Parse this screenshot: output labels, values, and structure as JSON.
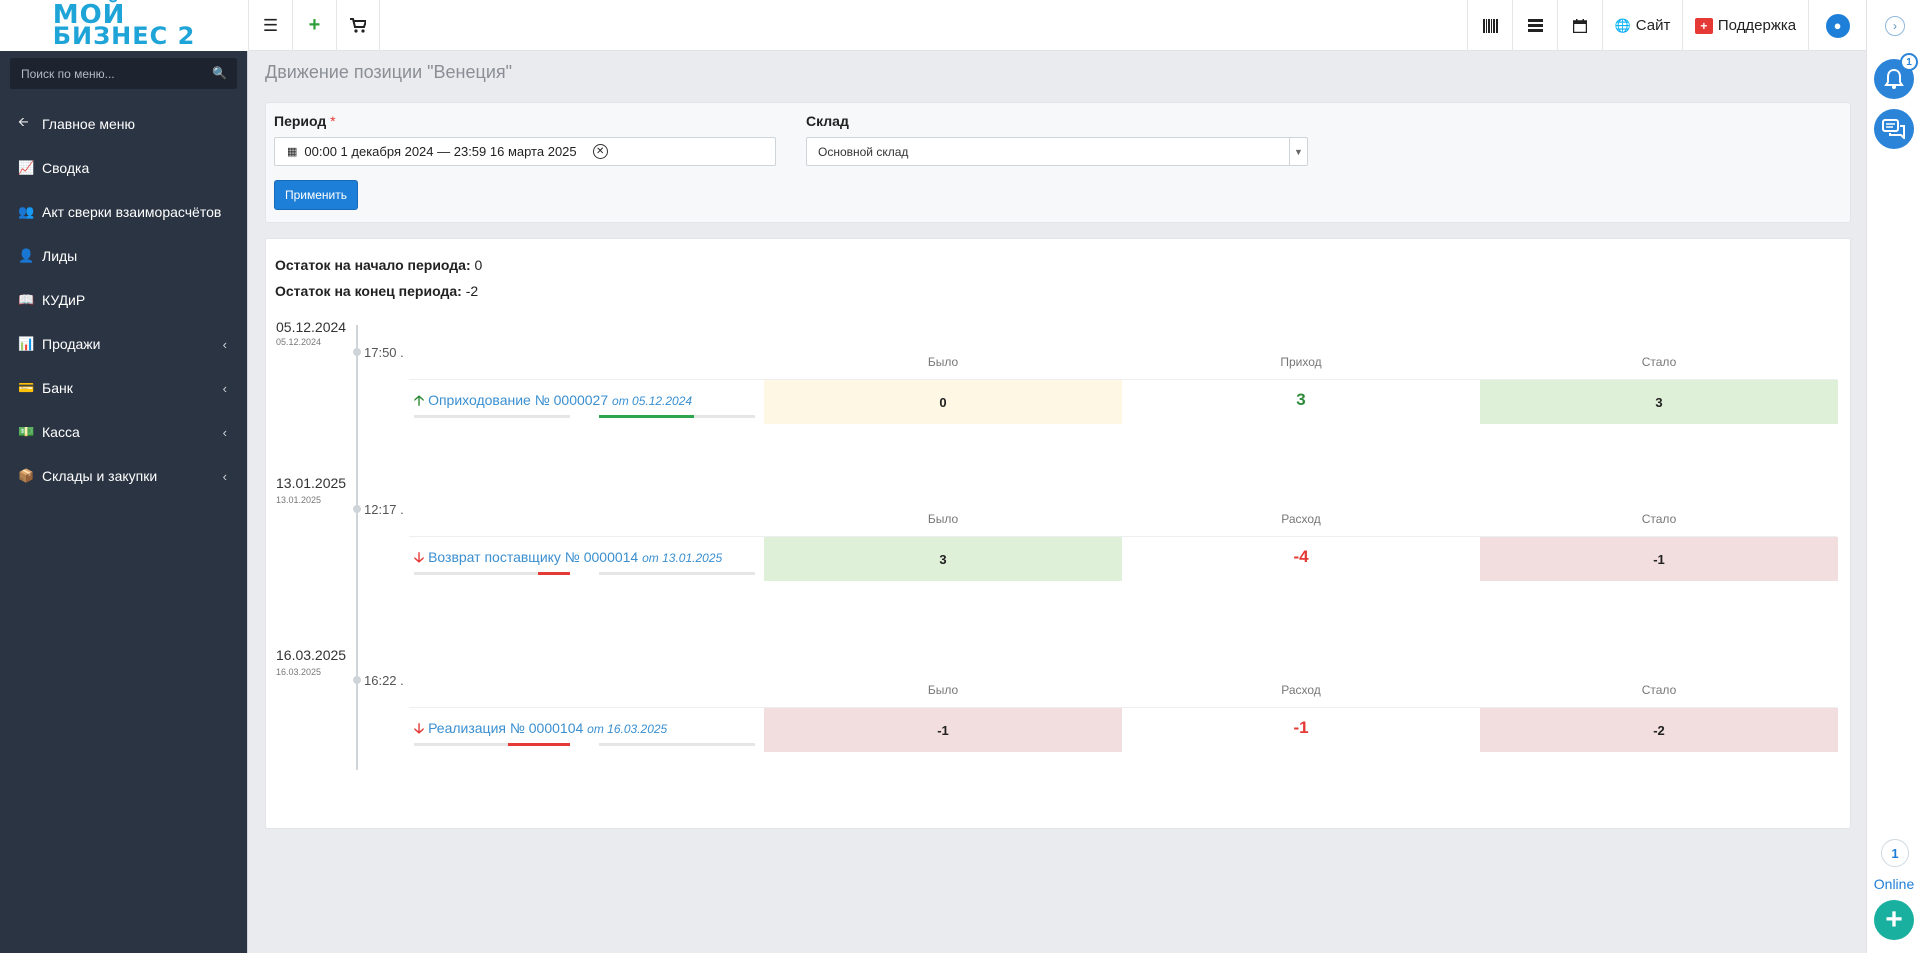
{
  "header": {
    "logo_line1": "МОЙ",
    "logo_line2": "БИЗНЕС 2",
    "site_label": "Сайт",
    "support_label": "Поддержка"
  },
  "rail": {
    "notifications_badge": "1",
    "online_count": "1",
    "online_label": "Online"
  },
  "sidebar": {
    "search_placeholder": "Поиск по меню...",
    "items": [
      {
        "label": "Главное меню",
        "icon": "arrow-left-icon"
      },
      {
        "label": "Сводка",
        "icon": "line-chart-icon"
      },
      {
        "label": "Акт сверки взаиморасчётов",
        "icon": "users-icon"
      },
      {
        "label": "Лиды",
        "icon": "contact-card-icon"
      },
      {
        "label": "КУДиР",
        "icon": "book-icon"
      },
      {
        "label": "Продажи",
        "icon": "bar-chart-icon",
        "has_submenu": true
      },
      {
        "label": "Банк",
        "icon": "credit-card-icon",
        "has_submenu": true
      },
      {
        "label": "Касса",
        "icon": "money-icon",
        "has_submenu": true
      },
      {
        "label": "Склады и закупки",
        "icon": "cube-icon",
        "has_submenu": true
      }
    ]
  },
  "page": {
    "title": "Движение позиции \"Венеция\""
  },
  "filters": {
    "period_label": "Период",
    "required_mark": "*",
    "period_value": "00:00 1 декабря 2024 — 23:59 16 марта 2025",
    "warehouse_label": "Склад",
    "warehouse_value": "Основной склад",
    "apply_label": "Применить"
  },
  "balances": {
    "start_label": "Остаток на начало периода:",
    "start_value": "0",
    "end_label": "Остаток на конец периода:",
    "end_value": "-2"
  },
  "columns": {
    "was": "Было",
    "income": "Приход",
    "expense": "Расход",
    "became": "Стало"
  },
  "movements": [
    {
      "date": "05.12.2024",
      "date_small": "05.12.2024",
      "time": "17:50",
      "direction": "in",
      "doc_title": "Оприходование № 0000027",
      "doc_date": "от 05.12.2024",
      "delta_header": "Приход",
      "was": "0",
      "delta": "3",
      "became": "3"
    },
    {
      "date": "13.01.2025",
      "date_small": "13.01.2025",
      "time": "12:17",
      "direction": "out",
      "doc_title": "Возврат поставщику № 0000014",
      "doc_date": "от 13.01.2025",
      "delta_header": "Расход",
      "was": "3",
      "delta": "-4",
      "became": "-1"
    },
    {
      "date": "16.03.2025",
      "date_small": "16.03.2025",
      "time": "16:22",
      "direction": "out",
      "doc_title": "Реализация № 0000104",
      "doc_date": "от 16.03.2025",
      "delta_header": "Расход",
      "was": "-1",
      "delta": "-1",
      "became": "-2"
    }
  ],
  "colors": {
    "sidebar_bg": "#2b3443",
    "accent": "#1e7fd8",
    "income_green": "#2e8b3a",
    "expense_red": "#e53935"
  }
}
